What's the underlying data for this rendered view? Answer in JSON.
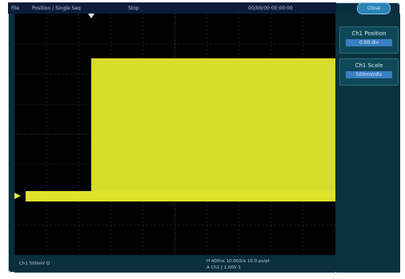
{
  "top_bar": {
    "menu_label": "File",
    "mode_label": "Position / Single Seq",
    "trigger_label": "Stop",
    "datetime": "00/00/00 00:00:00"
  },
  "side_panel": {
    "close_label": "Close",
    "buttons": [
      {
        "label": "Ch1 Position",
        "value": "0.00 div"
      },
      {
        "label": "Ch1 Scale",
        "value": "500mV/div"
      }
    ]
  },
  "status_bar": {
    "channel_readout": "Ch1   500mV  Ω",
    "timebase_readout": "H 400ns   10.0GS/s   10.0 ps/pt",
    "record_readout": "A  Ch1  ƒ  1.00V   1"
  },
  "colors": {
    "waveform": "#d8dc2a",
    "screen_bg": "#020202",
    "panel_bg": "#0a3340"
  }
}
